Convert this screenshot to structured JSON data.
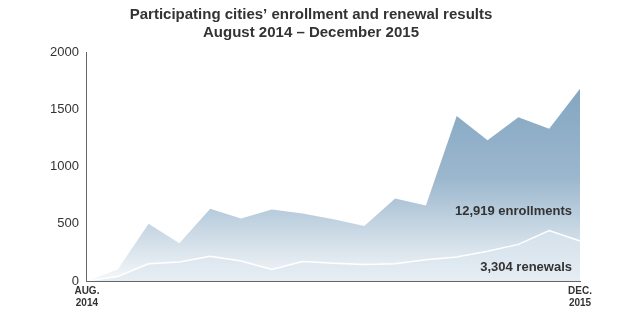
{
  "chart_data": {
    "type": "area",
    "title": "Participating cities’ enrollment and renewal results",
    "subtitle": "August 2014 – December 2015",
    "categories": [
      "AUG. 2014",
      null,
      null,
      null,
      null,
      null,
      null,
      null,
      null,
      null,
      null,
      null,
      null,
      null,
      null,
      null,
      "DEC. 2015"
    ],
    "series": [
      {
        "name": "12,919 enrollments",
        "color": "#7a9fbd",
        "values": [
          0,
          100,
          500,
          330,
          630,
          545,
          625,
          590,
          540,
          480,
          720,
          660,
          1440,
          1230,
          1430,
          1330,
          1680
        ]
      },
      {
        "name": "3,304 renewals",
        "color": "#dbe6ef",
        "values": [
          0,
          40,
          150,
          165,
          215,
          175,
          100,
          170,
          155,
          145,
          150,
          185,
          210,
          260,
          320,
          440,
          350
        ]
      }
    ],
    "ylim": [
      0,
      2000
    ],
    "yticks": [
      0,
      500,
      1000,
      1500,
      2000
    ],
    "grid": false
  }
}
